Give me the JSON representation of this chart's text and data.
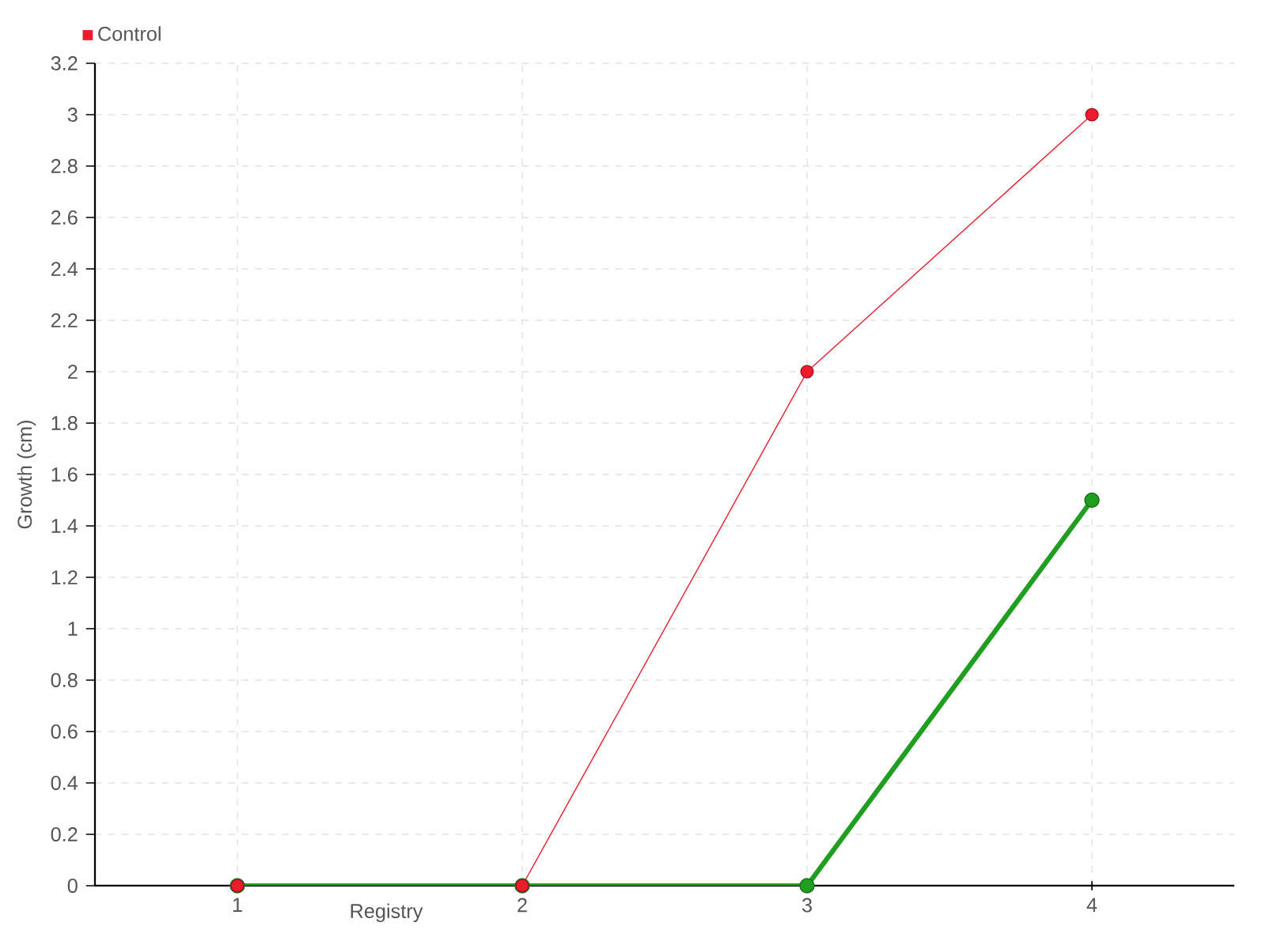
{
  "chart_data": {
    "type": "line",
    "xlabel": "Registry",
    "ylabel": "Growth (cm)",
    "x": [
      1,
      2,
      3,
      4
    ],
    "series": [
      {
        "color": "#1f9e1f",
        "values": [
          0,
          0,
          0,
          1.5
        ]
      },
      {
        "name": "Control",
        "color": "#ec1c2c",
        "values": [
          0,
          0,
          2,
          3
        ]
      }
    ],
    "xlim": [
      0.5,
      4.5
    ],
    "xticks": [
      1,
      2,
      3,
      4
    ],
    "ylim": [
      0,
      3.2
    ],
    "yticks": [
      0,
      0.2,
      0.4,
      0.6,
      0.8,
      1,
      1.2,
      1.4,
      1.6,
      1.8,
      2,
      2.2,
      2.4,
      2.6,
      2.8,
      3,
      3.2
    ],
    "grid": true,
    "legend": "top left",
    "marker": "circle",
    "line_style": "solid"
  }
}
